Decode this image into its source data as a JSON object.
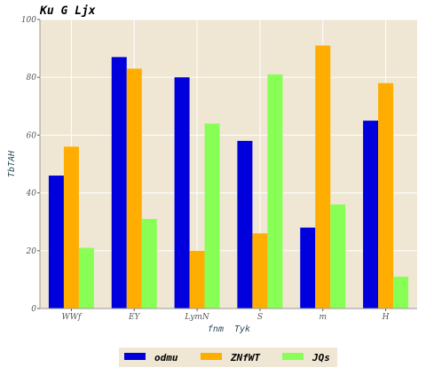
{
  "chart_data": {
    "type": "bar",
    "title": "Ku G Ljx",
    "xlabel": "fnm  Tyk",
    "ylabel": "TbTAH",
    "ylim": [
      0,
      100
    ],
    "yticks": [
      0,
      20,
      40,
      60,
      80,
      100
    ],
    "categories": [
      "WWf",
      "EY",
      "LymN",
      "S",
      "m",
      "H"
    ],
    "series": [
      {
        "name": "odmu",
        "values": [
          46,
          87,
          80,
          58,
          28,
          65
        ]
      },
      {
        "name": "ZNfWT",
        "values": [
          56,
          83,
          20,
          26,
          91,
          78
        ]
      },
      {
        "name": "JQs",
        "values": [
          21,
          31,
          64,
          81,
          36,
          11
        ]
      }
    ],
    "grid": true,
    "legend_position": "bottom-center"
  },
  "colors": {
    "plot_bg": "#efe7d4",
    "grid": "#ffffff",
    "series": [
      "#0000dd",
      "#ffad00",
      "#88ff55"
    ]
  }
}
